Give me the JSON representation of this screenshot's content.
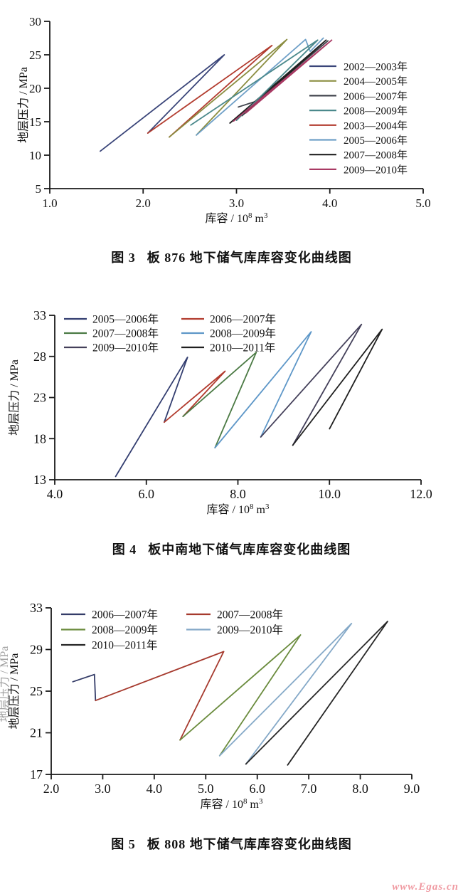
{
  "page": {
    "background": "#ffffff",
    "watermark": {
      "text": "www.Egas.cn",
      "color": "#f09aa2"
    }
  },
  "figures": [
    {
      "caption_num": "图 3",
      "caption_text": "板 876 地下储气库库容变化曲线图"
    },
    {
      "caption_num": "图 4",
      "caption_text": "板中南地下储气库库容变化曲线图"
    },
    {
      "caption_num": "图 5",
      "caption_text": "板 808 地下储气库库容变化曲线图"
    }
  ],
  "chart_data": [
    {
      "type": "line",
      "title": "图3 板876地下储气库库容变化曲线图",
      "xlabel": {
        "pre": "库容 / 10",
        "exp": "8",
        "mid": " m",
        "exp2": "3"
      },
      "ylabel": "地层压力 / MPa",
      "ylabel_doubled": false,
      "xlim": [
        1.0,
        5.0
      ],
      "ylim": [
        5,
        30
      ],
      "xticks": [
        1.0,
        2.0,
        3.0,
        4.0,
        5.0
      ],
      "xtick_labels": [
        "1.0",
        "2.0",
        "3.0",
        "4.0",
        "5.0"
      ],
      "yticks": [
        5,
        10,
        15,
        20,
        25,
        30
      ],
      "ytick_labels": [
        "5",
        "10",
        "15",
        "20",
        "25",
        "30"
      ],
      "grid": false,
      "legend_position": "right-inside",
      "legend_order": [
        [
          0,
          2,
          4,
          6,
          1,
          3,
          5,
          7
        ]
      ],
      "series": [
        {
          "name": "2002—2003年",
          "color": "#3a4579",
          "points": [
            [
              1.54,
              10.6
            ],
            [
              2.87,
              25.0
            ],
            [
              2.05,
              13.3
            ]
          ]
        },
        {
          "name": "2003—2004年",
          "color": "#b23b2e",
          "points": [
            [
              2.05,
              13.3
            ],
            [
              3.38,
              26.4
            ],
            [
              2.28,
              12.7
            ]
          ]
        },
        {
          "name": "2004—2005年",
          "color": "#8b8d40",
          "points": [
            [
              2.28,
              12.7
            ],
            [
              3.54,
              27.3
            ],
            [
              2.57,
              13.0
            ]
          ]
        },
        {
          "name": "2005—2006年",
          "color": "#6fa0c8",
          "points": [
            [
              2.57,
              13.0
            ],
            [
              3.74,
              27.3
            ],
            [
              3.79,
              25.5
            ],
            [
              3.93,
              27.5
            ]
          ]
        },
        {
          "name": "2006—2007年",
          "color": "#40434c",
          "points": [
            [
              3.02,
              17.2
            ],
            [
              3.22,
              18.1
            ],
            [
              3.98,
              27.1
            ],
            [
              2.93,
              14.8
            ]
          ]
        },
        {
          "name": "2007—2008年",
          "color": "#202020",
          "points": [
            [
              2.93,
              14.8
            ],
            [
              3.96,
              27.2
            ],
            [
              3.06,
              15.9
            ]
          ]
        },
        {
          "name": "2008—2009年",
          "color": "#4b898c",
          "points": [
            [
              2.51,
              14.5
            ],
            [
              3.87,
              27.2
            ],
            [
              3.0,
              15.2
            ]
          ]
        },
        {
          "name": "2009—2010年",
          "color": "#a93a64",
          "points": [
            [
              2.97,
              15.1
            ],
            [
              4.02,
              27.2
            ],
            [
              3.1,
              16.3
            ]
          ]
        }
      ]
    },
    {
      "type": "line",
      "title": "图4 板中南地下储气库库容变化曲线图",
      "xlabel": {
        "pre": "库容 / 10",
        "exp": "8",
        "mid": " m",
        "exp2": "3"
      },
      "ylabel": "地层压力 / MPa",
      "ylabel_doubled": false,
      "xlim": [
        4.0,
        12.0
      ],
      "ylim": [
        13,
        33
      ],
      "xticks": [
        4.0,
        6.0,
        8.0,
        10.0,
        12.0
      ],
      "xtick_labels": [
        "4.0",
        "6.0",
        "8.0",
        "10.0",
        "12.0"
      ],
      "yticks": [
        13,
        18,
        23,
        28,
        33
      ],
      "ytick_labels": [
        "13",
        "18",
        "23",
        "28",
        "33"
      ],
      "grid": false,
      "legend_position": "top-left-inside",
      "legend_order": [
        [
          0,
          2,
          4
        ],
        [
          1,
          3,
          5
        ]
      ],
      "series": [
        {
          "name": "2005—2006年",
          "color": "#333e70",
          "points": [
            [
              5.33,
              13.4
            ],
            [
              6.9,
              27.9
            ],
            [
              6.39,
              20.0
            ]
          ]
        },
        {
          "name": "2006—2007年",
          "color": "#b23b2e",
          "points": [
            [
              6.39,
              20.0
            ],
            [
              7.72,
              26.2
            ],
            [
              6.8,
              20.7
            ]
          ]
        },
        {
          "name": "2007—2008年",
          "color": "#4b7a44",
          "points": [
            [
              6.8,
              20.7
            ],
            [
              8.4,
              28.5
            ],
            [
              7.5,
              16.9
            ]
          ]
        },
        {
          "name": "2008—2009年",
          "color": "#5e97c8",
          "points": [
            [
              7.5,
              16.9
            ],
            [
              9.6,
              31.0
            ],
            [
              8.5,
              18.2
            ]
          ]
        },
        {
          "name": "2009—2010年",
          "color": "#44405a",
          "points": [
            [
              8.5,
              18.2
            ],
            [
              10.7,
              31.9
            ],
            [
              9.2,
              17.2
            ]
          ]
        },
        {
          "name": "2010—2011年",
          "color": "#1f1f1f",
          "points": [
            [
              9.2,
              17.2
            ],
            [
              11.15,
              31.3
            ],
            [
              10.0,
              19.2
            ]
          ]
        }
      ]
    },
    {
      "type": "line",
      "title": "图5 板808地下储气库库容变化曲线图",
      "xlabel": {
        "pre": "库容 / 10",
        "exp": "8",
        "mid": " m",
        "exp2": "3"
      },
      "ylabel": "地层压力 / MPa",
      "ylabel_doubled": true,
      "xlim": [
        2.0,
        9.0
      ],
      "ylim": [
        17,
        33
      ],
      "xticks": [
        2.0,
        3.0,
        4.0,
        5.0,
        6.0,
        7.0,
        8.0,
        9.0
      ],
      "xtick_labels": [
        "2.0",
        "3.0",
        "4.0",
        "5.0",
        "6.0",
        "7.0",
        "8.0",
        "9.0"
      ],
      "yticks": [
        17,
        21,
        25,
        29,
        33
      ],
      "ytick_labels": [
        "17",
        "21",
        "25",
        "29",
        "33"
      ],
      "grid": false,
      "legend_position": "top-left-inside",
      "legend_order": [
        [
          0,
          2,
          4
        ],
        [
          1,
          3
        ]
      ],
      "series": [
        {
          "name": "2006—2007年",
          "color": "#343c68",
          "points": [
            [
              2.42,
              25.9
            ],
            [
              2.84,
              26.6
            ],
            [
              2.86,
              24.1
            ]
          ]
        },
        {
          "name": "2007—2008年",
          "color": "#a63a2e",
          "points": [
            [
              2.86,
              24.1
            ],
            [
              5.35,
              28.8
            ],
            [
              4.5,
              20.3
            ]
          ]
        },
        {
          "name": "2008—2009年",
          "color": "#6b8c3e",
          "points": [
            [
              4.5,
              20.3
            ],
            [
              6.84,
              30.4
            ],
            [
              5.27,
              18.8
            ]
          ]
        },
        {
          "name": "2009—2010年",
          "color": "#85a9c8",
          "points": [
            [
              5.27,
              18.8
            ],
            [
              7.83,
              31.5
            ],
            [
              5.78,
              18.0
            ]
          ]
        },
        {
          "name": "2010—2011年",
          "color": "#262626",
          "points": [
            [
              5.78,
              18.0
            ],
            [
              8.53,
              31.7
            ],
            [
              6.59,
              17.9
            ]
          ]
        }
      ]
    }
  ]
}
